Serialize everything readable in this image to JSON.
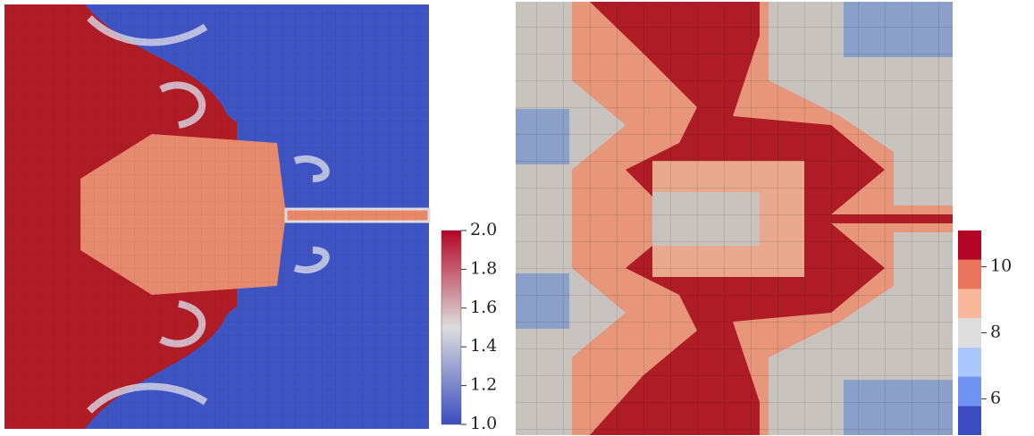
{
  "panels": [
    {
      "colorbar": {
        "lim": [
          1.0,
          2.0
        ],
        "colors": [
          "#3b4cc0",
          "#dddddd",
          "#b40426"
        ],
        "ticks": [
          {
            "value": 2.0,
            "label": "2.0"
          },
          {
            "value": 1.8,
            "label": "1.8"
          },
          {
            "value": 1.6,
            "label": "1.6"
          },
          {
            "value": 1.4,
            "label": "1.4"
          },
          {
            "value": 1.2,
            "label": "1.2"
          },
          {
            "value": 1.0,
            "label": "1.0"
          }
        ]
      }
    },
    {
      "colorbar": {
        "lim": [
          4.9,
          11.1
        ],
        "colors": [
          "#3b4cc0",
          "#6f92f3",
          "#aac7fd",
          "#dddddd",
          "#f7b89c",
          "#e7745b",
          "#b40426"
        ],
        "ticks": [
          10,
          8,
          6
        ]
      }
    }
  ]
}
